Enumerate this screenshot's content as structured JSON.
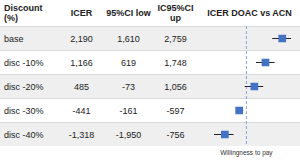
{
  "chart_data": {
    "type": "forest",
    "title": "ICER DOAC vs ACN",
    "columns": [
      "Discount (%)",
      "ICER",
      "95%CI low",
      "IC95%CI up"
    ],
    "categories": [
      "base",
      "disc -10%",
      "disc -20%",
      "disc -30%",
      "disc -40%"
    ],
    "values": [
      2190,
      1166,
      485,
      -441,
      -1318
    ],
    "value_labels": [
      "2,190",
      "1,166",
      "485",
      "-441",
      "-1,318"
    ],
    "ci_low": [
      1610,
      619,
      -73,
      -161,
      -1950
    ],
    "ci_low_labels": [
      "1,610",
      "619",
      "-73",
      "-161",
      "-1,950"
    ],
    "ci_high": [
      2759,
      1748,
      1056,
      -597,
      -756
    ],
    "ci_high_labels": [
      "2,759",
      "1,748",
      "1,056",
      "-597",
      "-756"
    ],
    "xlabel": "Willingness to pay",
    "reference_line": 0,
    "xlim": [
      -2500,
      3000
    ],
    "tick_labels": false,
    "color": "#4472c4"
  }
}
